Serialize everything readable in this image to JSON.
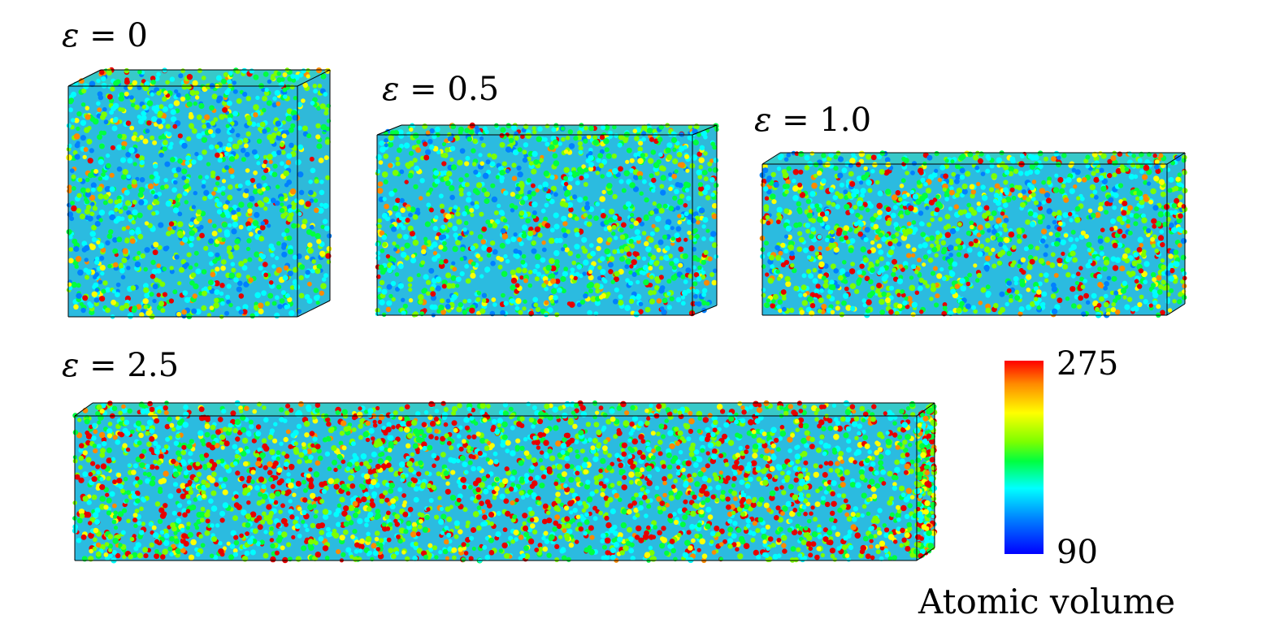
{
  "panels": [
    {
      "strain_label": "ε = 0",
      "symbol": "ε",
      "value": "0"
    },
    {
      "strain_label": "ε = 0.5",
      "symbol": "ε",
      "value": "0.5"
    },
    {
      "strain_label": "ε = 1.0",
      "symbol": "ε",
      "value": "1.0"
    },
    {
      "strain_label": "ε = 2.5",
      "symbol": "ε",
      "value": "2.5"
    }
  ],
  "colorbar": {
    "max_label": "275",
    "min_label": "90",
    "title": "Atomic volume",
    "colors": [
      "#0000ff",
      "#0080ff",
      "#00ffff",
      "#00ff40",
      "#7cff00",
      "#ffff00",
      "#ff8a00",
      "#ff0000"
    ]
  }
}
